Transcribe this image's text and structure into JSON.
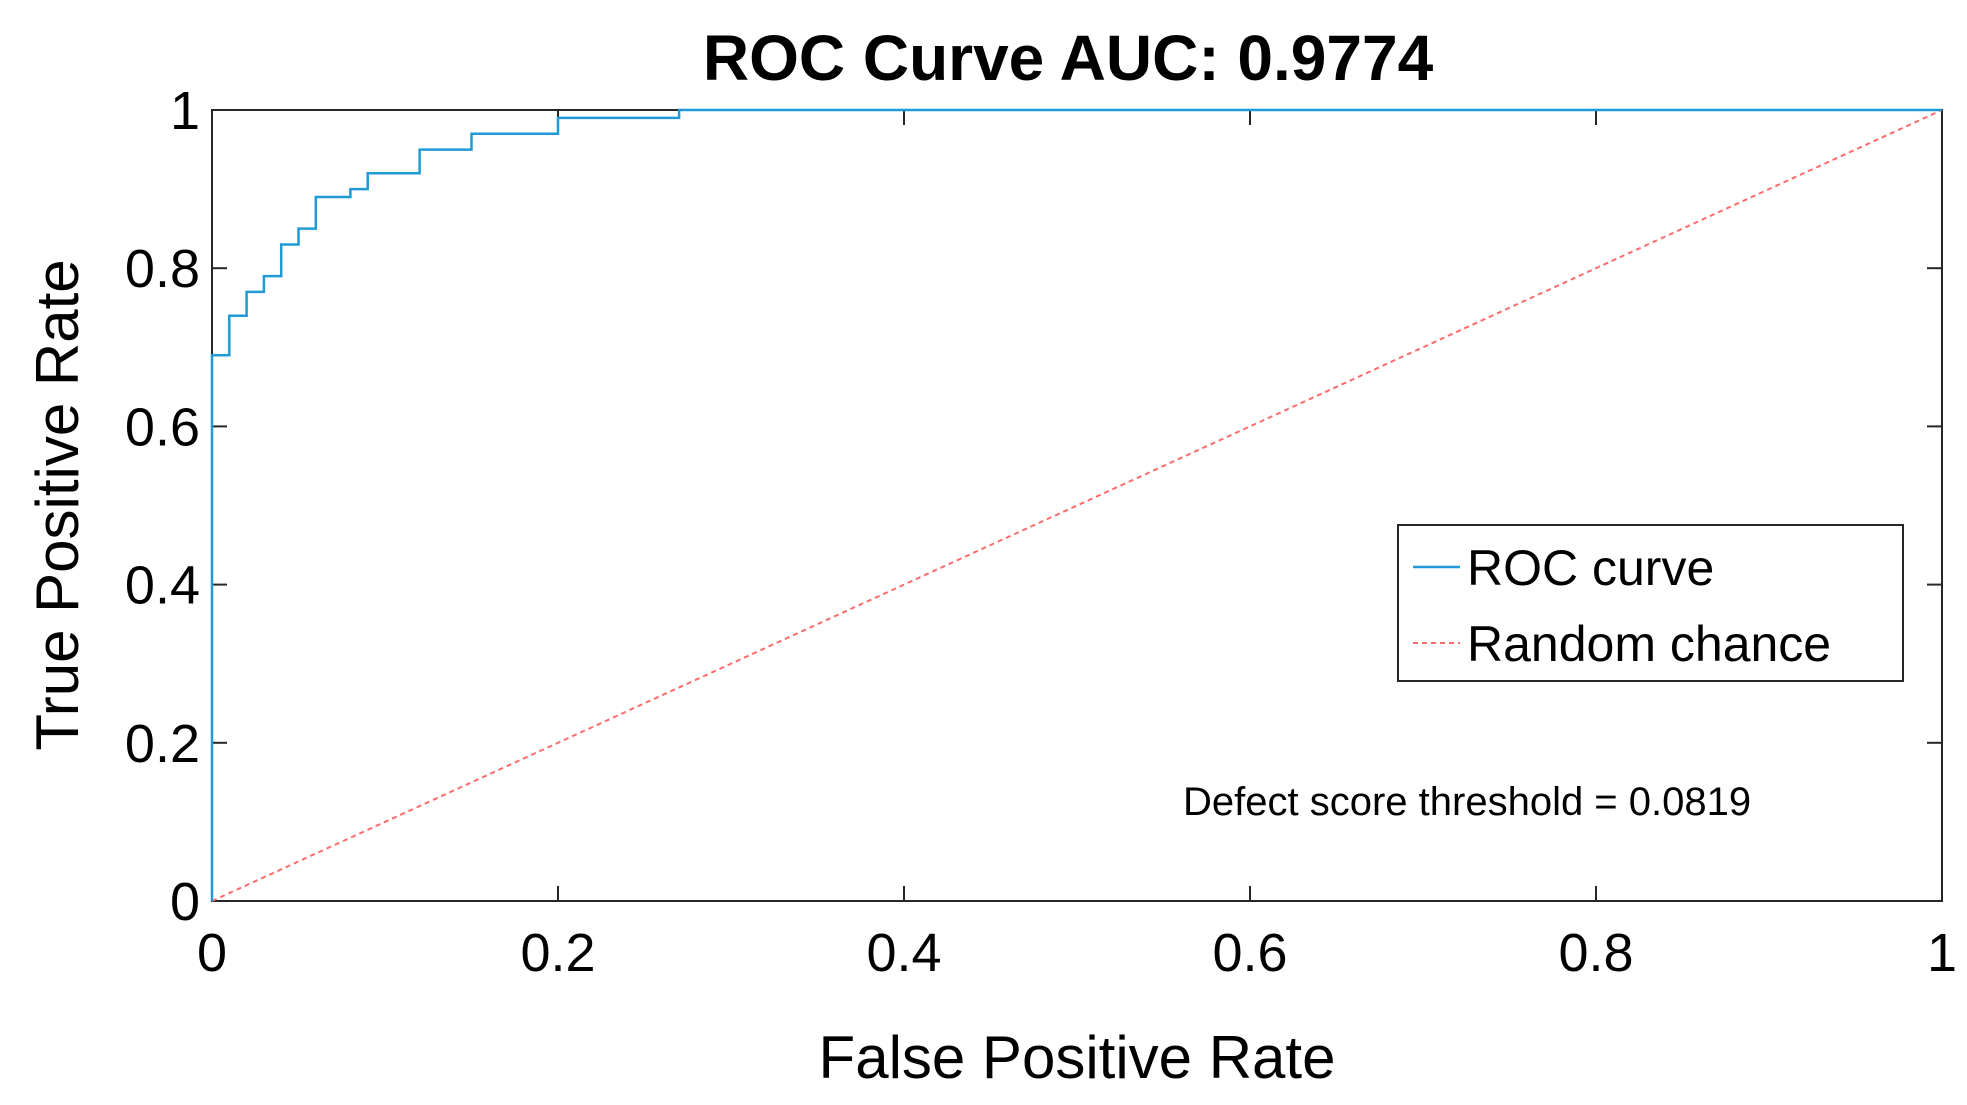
{
  "chart_data": {
    "type": "line",
    "title": "ROC Curve AUC: 0.9774",
    "xlabel": "False Positive Rate",
    "ylabel": "True Positive Rate",
    "xlim": [
      0,
      1
    ],
    "ylim": [
      0,
      1
    ],
    "xticks": [
      0,
      0.2,
      0.4,
      0.6,
      0.8,
      1
    ],
    "yticks": [
      0,
      0.2,
      0.4,
      0.6,
      0.8,
      1
    ],
    "xtick_labels": [
      "0",
      "0.2",
      "0.4",
      "0.6",
      "0.8",
      "1"
    ],
    "ytick_labels": [
      "0",
      "0.2",
      "0.4",
      "0.6",
      "0.8",
      "1"
    ],
    "grid": false,
    "legend_position": "center-right",
    "series": [
      {
        "name": "ROC curve",
        "color": "#1f9ad6",
        "style": "solid",
        "x": [
          0,
          0,
          0.01,
          0.01,
          0.02,
          0.02,
          0.03,
          0.03,
          0.04,
          0.04,
          0.05,
          0.05,
          0.06,
          0.06,
          0.08,
          0.08,
          0.09,
          0.09,
          0.12,
          0.12,
          0.15,
          0.15,
          0.2,
          0.2,
          0.27,
          0.27,
          1.0
        ],
        "y": [
          0,
          0.69,
          0.69,
          0.74,
          0.74,
          0.77,
          0.77,
          0.79,
          0.79,
          0.83,
          0.83,
          0.85,
          0.85,
          0.89,
          0.89,
          0.9,
          0.9,
          0.92,
          0.92,
          0.95,
          0.95,
          0.97,
          0.97,
          0.99,
          0.99,
          1.0,
          1.0
        ]
      },
      {
        "name": "Random chance",
        "color": "#ff6b6b",
        "style": "dashed",
        "x": [
          0,
          1
        ],
        "y": [
          0,
          1
        ]
      }
    ],
    "annotations": [
      {
        "text": "Defect score threshold = 0.0819",
        "x": 0.565,
        "y": 0.125
      }
    ]
  }
}
